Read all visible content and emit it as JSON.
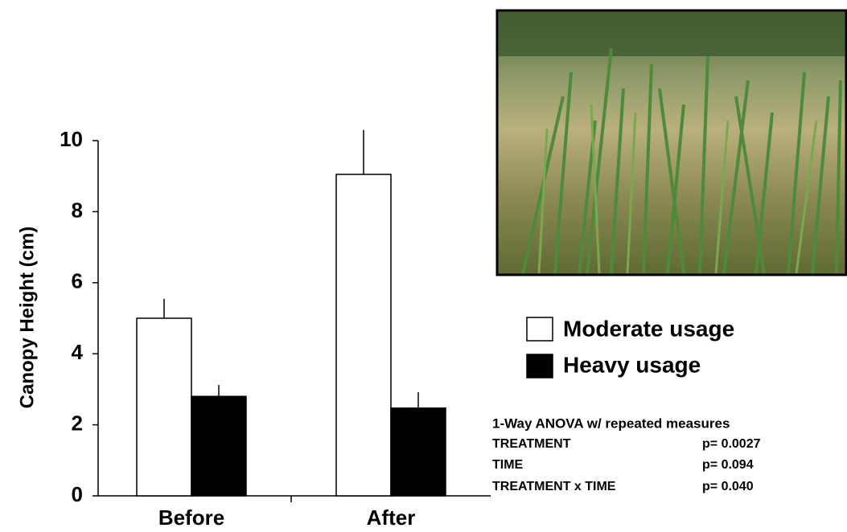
{
  "chart_data": {
    "type": "bar",
    "ylabel": "Canopy Height (cm)",
    "categories": [
      "Before",
      "After"
    ],
    "series": [
      {
        "name": "Moderate usage",
        "color": "#ffffff",
        "values": [
          5.0,
          9.05
        ],
        "errors": [
          0.55,
          1.25
        ]
      },
      {
        "name": "Heavy usage",
        "color": "#000000",
        "values": [
          2.8,
          2.47
        ],
        "errors": [
          0.32,
          0.45
        ]
      }
    ],
    "ylim": [
      0,
      10
    ],
    "yticks": [
      0,
      2,
      4,
      6,
      8,
      10
    ],
    "annotations": {
      "title": "1-Way ANOVA w/ repeated measures",
      "rows": [
        {
          "term": "TREATMENT",
          "p": "p= 0.0027"
        },
        {
          "term": "TIME",
          "p": "p= 0.094"
        },
        {
          "term": "TREATMENT x TIME",
          "p": "p= 0.040"
        }
      ]
    }
  }
}
